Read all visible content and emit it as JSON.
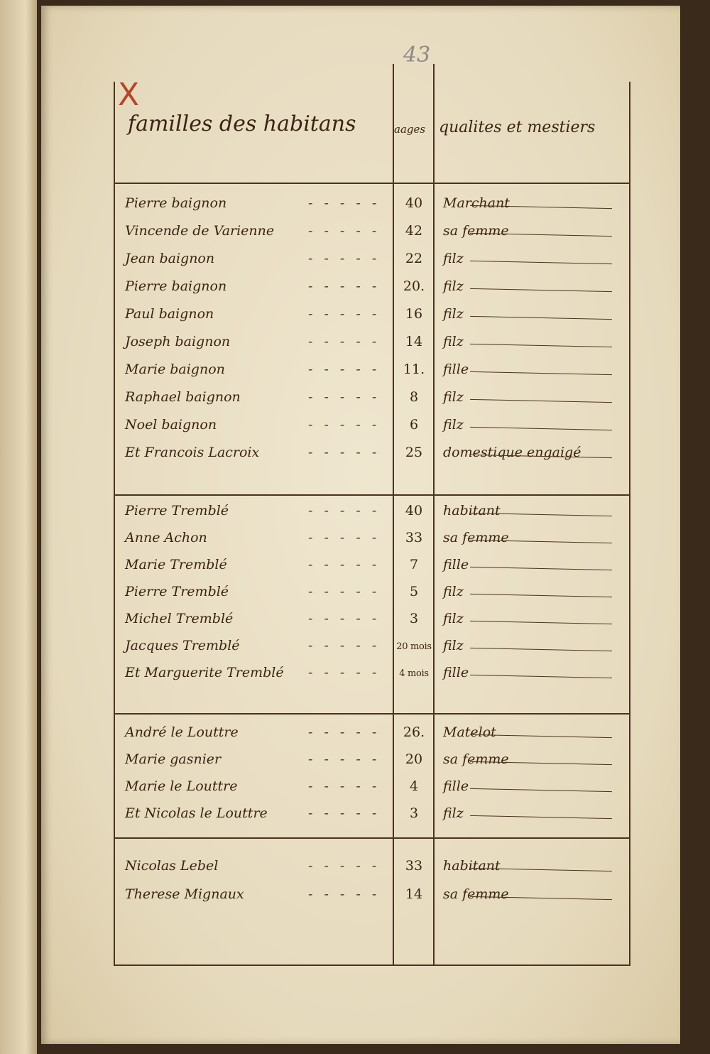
{
  "page_number": "43",
  "margin_mark": "X",
  "headers": {
    "name": "familles des habitans",
    "age": "aages",
    "role": "qualites et mestiers"
  },
  "groups": [
    {
      "rows": [
        {
          "name": "Pierre baignon",
          "age": "40",
          "role": "Marchant"
        },
        {
          "name": "Vincende de Varienne",
          "age": "42",
          "role": "sa femme"
        },
        {
          "name": "Jean baignon",
          "age": "22",
          "role": "filz"
        },
        {
          "name": "Pierre baignon",
          "age": "20.",
          "role": "filz"
        },
        {
          "name": "Paul baignon",
          "age": "16",
          "role": "filz"
        },
        {
          "name": "Joseph baignon",
          "age": "14",
          "role": "filz"
        },
        {
          "name": "Marie baignon",
          "age": "11.",
          "role": "fille"
        },
        {
          "name": "Raphael baignon",
          "age": "8",
          "role": "filz"
        },
        {
          "name": "Noel baignon",
          "age": "6",
          "role": "filz"
        },
        {
          "name": "Et Francois Lacroix",
          "age": "25",
          "role": "domestique engaigé"
        }
      ]
    },
    {
      "rows": [
        {
          "name": "Pierre Tremblé",
          "age": "40",
          "role": "habitant"
        },
        {
          "name": "Anne Achon",
          "age": "33",
          "role": "sa femme"
        },
        {
          "name": "Marie Tremblé",
          "age": "7",
          "role": "fille"
        },
        {
          "name": "Pierre Tremblé",
          "age": "5",
          "role": "filz"
        },
        {
          "name": "Michel Tremblé",
          "age": "3",
          "role": "filz"
        },
        {
          "name": "Jacques Tremblé",
          "age": "20 mois",
          "role": "filz"
        },
        {
          "name": "Et Marguerite Tremblé",
          "age": "4 mois",
          "role": "fille"
        }
      ]
    },
    {
      "rows": [
        {
          "name": "André le Louttre",
          "age": "26.",
          "role": "Matelot"
        },
        {
          "name": "Marie gasnier",
          "age": "20",
          "role": "sa femme"
        },
        {
          "name": "Marie le Louttre",
          "age": "4",
          "role": "fille"
        },
        {
          "name": "Et Nicolas le Louttre",
          "age": "3",
          "role": "filz"
        }
      ]
    },
    {
      "rows": [
        {
          "name": "Nicolas Lebel",
          "age": "33",
          "role": "habitant"
        },
        {
          "name": "Therese Mignaux",
          "age": "14",
          "role": "sa femme"
        }
      ]
    }
  ]
}
